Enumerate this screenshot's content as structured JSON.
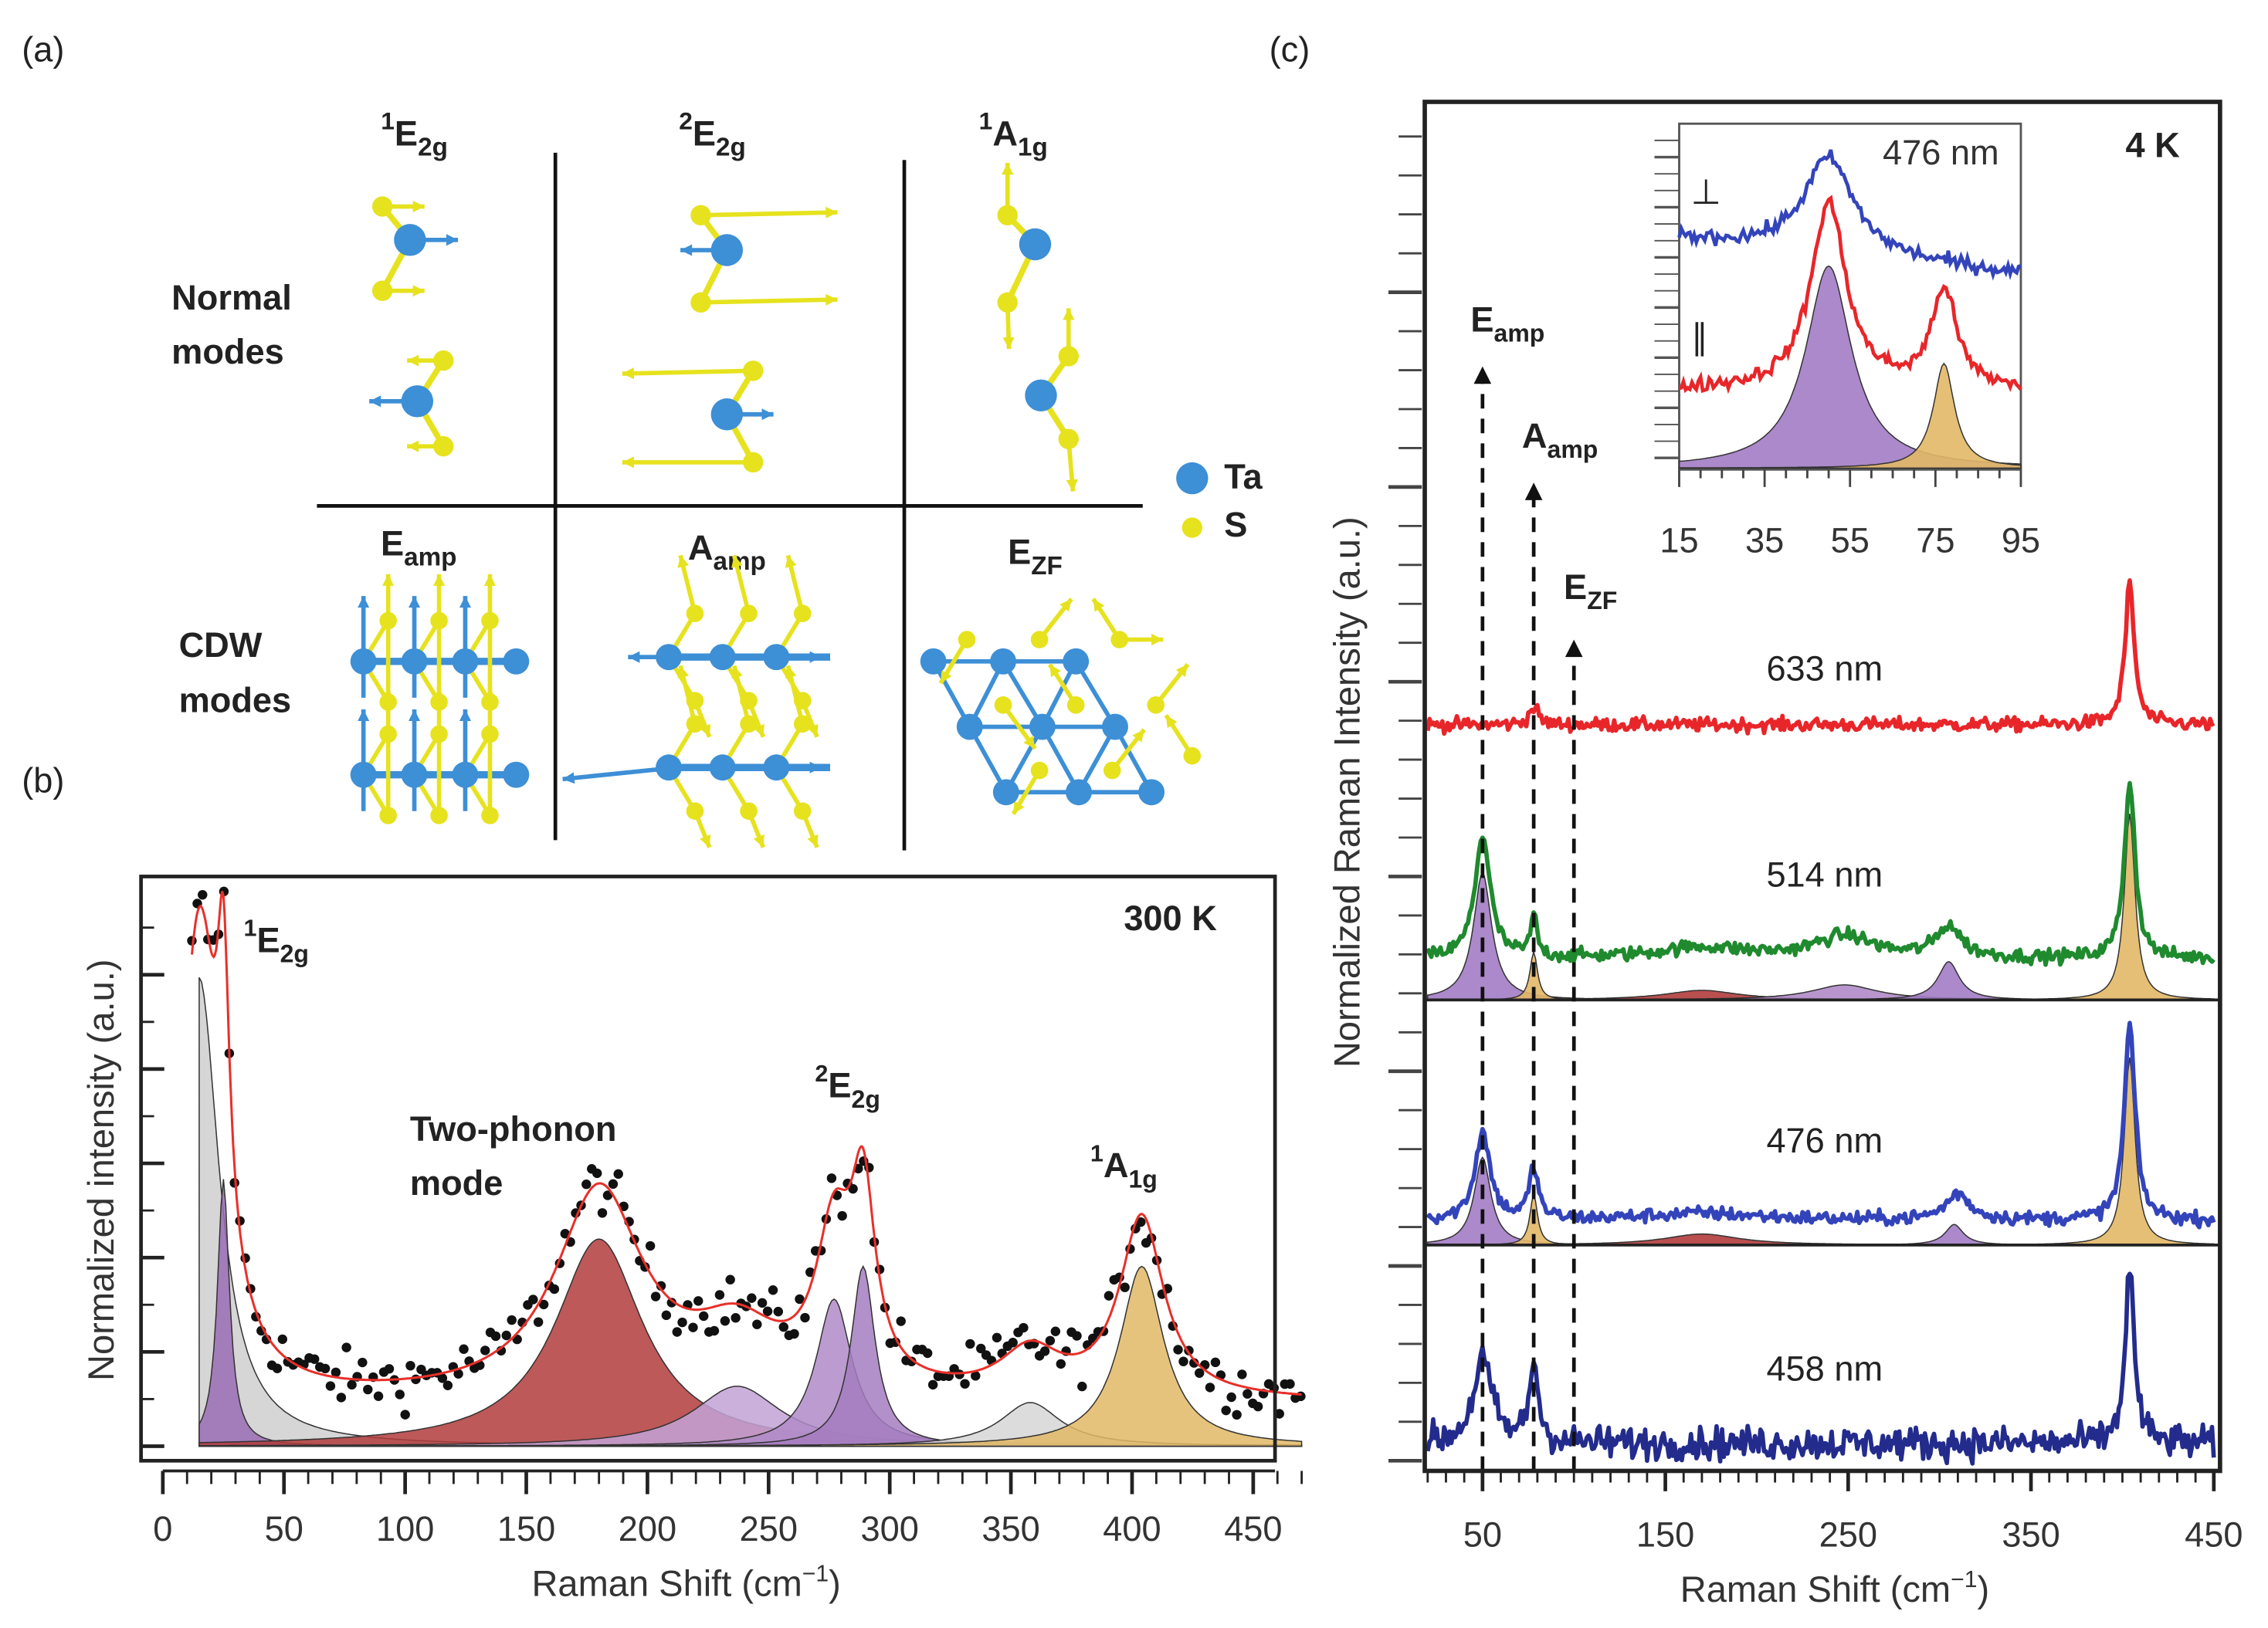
{
  "panel_labels": {
    "a": "(a)",
    "b": "(b)",
    "c": "(c)"
  },
  "panel_a": {
    "row_labels": {
      "normal": [
        "Normal",
        "modes"
      ],
      "cdw": [
        "CDW",
        "modes"
      ]
    },
    "normal_modes": [
      {
        "sup": "1",
        "main": "E",
        "sub": "2g"
      },
      {
        "sup": "2",
        "main": "E",
        "sub": "2g"
      },
      {
        "sup": "1",
        "main": "A",
        "sub": "1g"
      }
    ],
    "cdw_modes": [
      {
        "main": "E",
        "sub": "amp"
      },
      {
        "main": "A",
        "sub": "amp"
      },
      {
        "main": "E",
        "sub": "ZF"
      }
    ],
    "legend": [
      {
        "label": "Ta",
        "color": "#3d8fd6"
      },
      {
        "label": "S",
        "color": "#e6e21e"
      }
    ]
  },
  "chart_data": [
    {
      "id": "b",
      "type": "scatter",
      "title": "",
      "annotation_temperature": "300 K",
      "xlabel": "Raman Shift (cm",
      "xlabel_sup": "−1",
      "xlabel_end": ")",
      "ylabel": "Normalized intensity (a.u.)",
      "xlim": [
        0,
        470
      ],
      "ylim": [
        0,
        1.05
      ],
      "xticks": [
        0,
        50,
        100,
        150,
        200,
        250,
        300,
        350,
        400,
        450
      ],
      "grid": false,
      "peak_labels": [
        {
          "sup": "1",
          "main": "E",
          "sub": "2g"
        },
        {
          "text": [
            "Two-phonon",
            "mode"
          ]
        },
        {
          "sup": "2",
          "main": "E",
          "sub": "2g"
        },
        {
          "sup": "1",
          "main": "A",
          "sub": "1g"
        }
      ],
      "fit_baseline": 0.08,
      "fit_color": "#e8302a",
      "point_color": "#111111",
      "components": [
        {
          "center": 15,
          "amplitude": 0.86,
          "hwhm": 10,
          "color": "#cfcfcf"
        },
        {
          "center": 25,
          "amplitude": 0.49,
          "hwhm": 3,
          "color": "#9a6cb5"
        },
        {
          "center": 180,
          "amplitude": 0.38,
          "hwhm": 22,
          "color": "#b13c3c"
        },
        {
          "center": 237,
          "amplitude": 0.11,
          "hwhm": 22,
          "color": "#c3a2d6"
        },
        {
          "center": 277,
          "amplitude": 0.27,
          "hwhm": 9,
          "color": "#b08bc8"
        },
        {
          "center": 289,
          "amplitude": 0.33,
          "hwhm": 6,
          "color": "#a57cc0"
        },
        {
          "center": 358,
          "amplitude": 0.08,
          "hwhm": 15,
          "color": "#d6d6d6"
        },
        {
          "center": 404,
          "amplitude": 0.33,
          "hwhm": 11,
          "color": "#e2b866"
        }
      ]
    },
    {
      "id": "c",
      "type": "line",
      "title": "",
      "annotation_temperature": "4 K",
      "xlabel": "Raman Shift (cm",
      "xlabel_sup": "−1",
      "xlabel_end": ")",
      "ylabel": "Normalized Raman Intensity (a.u.)",
      "xlim": [
        20,
        450
      ],
      "ylim": [
        0,
        10
      ],
      "xticks": [
        50,
        150,
        250,
        350,
        450
      ],
      "grid": false,
      "mode_markers": [
        {
          "x": 50,
          "main": "E",
          "sub": "amp"
        },
        {
          "x": 78,
          "main": "A",
          "sub": "amp"
        },
        {
          "x": 100,
          "main": "E",
          "sub": "ZF"
        }
      ],
      "series": [
        {
          "name": "633 nm",
          "color": "#e8262a",
          "offset": 5.45,
          "peaks": [
            [
              78,
              0.13,
              3
            ],
            [
              404,
              1.03,
              3
            ]
          ]
        },
        {
          "name": "514 nm",
          "color": "#1f8a2e",
          "offset": 3.74,
          "peaks": [
            [
              50,
              0.9,
              5
            ],
            [
              78,
              0.3,
              2
            ],
            [
              170,
              0.08,
              30
            ],
            [
              248,
              0.16,
              20
            ],
            [
              305,
              0.23,
              8
            ],
            [
              404,
              1.3,
              3.5
            ]
          ],
          "components_offset": 3.44,
          "components": [
            [
              50,
              0.93,
              6,
              "#a27cc4"
            ],
            [
              78,
              0.35,
              2.5,
              "#e2b866"
            ],
            [
              170,
              0.07,
              25,
              "#b13c3c"
            ],
            [
              248,
              0.11,
              22,
              "#b08bc8"
            ],
            [
              305,
              0.28,
              7,
              "#a27cc4"
            ],
            [
              404,
              1.36,
              3.5,
              "#e2b866"
            ]
          ]
        },
        {
          "name": "476 nm",
          "color": "#3344bb",
          "offset": 1.83,
          "peaks": [
            [
              50,
              0.64,
              5
            ],
            [
              78,
              0.37,
              3
            ],
            [
              170,
              0.05,
              40
            ],
            [
              310,
              0.19,
              8
            ],
            [
              404,
              1.43,
              3.5
            ]
          ],
          "components_offset": 1.65,
          "components": [
            [
              50,
              0.64,
              5.5,
              "#a27cc4"
            ],
            [
              78,
              0.37,
              2.5,
              "#e2b866"
            ],
            [
              170,
              0.08,
              25,
              "#b13c3c"
            ],
            [
              308,
              0.15,
              6,
              "#a27cc4"
            ],
            [
              404,
              1.37,
              3.5,
              "#e2b866"
            ]
          ]
        },
        {
          "name": "458 nm",
          "color": "#232c8c",
          "offset": 0.2,
          "peaks": [
            [
              50,
              0.62,
              6
            ],
            [
              78,
              0.58,
              3
            ],
            [
              404,
              1.27,
              3
            ]
          ]
        }
      ],
      "inset": {
        "label": "476 nm",
        "xlim": [
          15,
          95
        ],
        "xticks": [
          15,
          35,
          55,
          75,
          95
        ],
        "series": [
          {
            "name": "⊥",
            "color": "#3344bb",
            "offset": 1.47,
            "peaks": [
              [
                50,
                0.67,
                7
              ]
            ]
          },
          {
            "name": "∥",
            "color": "#e8262a",
            "offset": 0.54,
            "peaks": [
              [
                50,
                1.28,
                5
              ],
              [
                77,
                0.68,
                3.5
              ]
            ]
          }
        ],
        "components": [
          [
            50,
            1.39,
            6.5,
            "#a27cc4"
          ],
          [
            77,
            0.72,
            3,
            "#e2b866"
          ]
        ]
      }
    }
  ]
}
